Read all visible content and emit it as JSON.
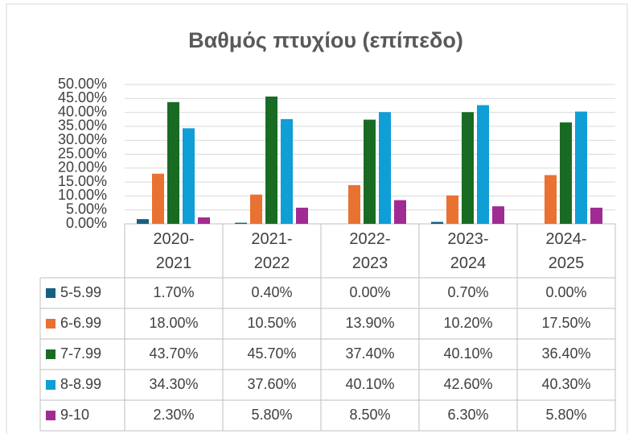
{
  "chart_data": {
    "type": "bar",
    "title": "Βαθμός πτυχίου (επίπεδο)",
    "categories": [
      "2020-2021",
      "2021-2022",
      "2022-2023",
      "2023-2024",
      "2024-2025"
    ],
    "series": [
      {
        "name": "5-5.99",
        "color": "#156082",
        "values": [
          1.7,
          0.4,
          0,
          0.7,
          0
        ],
        "value_labels": [
          "1.70%",
          "0.40%",
          "0.00%",
          "0.70%",
          "0.00%"
        ]
      },
      {
        "name": "6-6.99",
        "color": "#e97132",
        "values": [
          18,
          10.5,
          13.9,
          10.2,
          17.5
        ],
        "value_labels": [
          "18.00%",
          "10.50%",
          "13.90%",
          "10.20%",
          "17.50%"
        ]
      },
      {
        "name": "7-7.99",
        "color": "#196b24",
        "values": [
          43.7,
          45.7,
          37.4,
          40.1,
          36.4
        ],
        "value_labels": [
          "43.70%",
          "45.70%",
          "37.40%",
          "40.10%",
          "36.40%"
        ]
      },
      {
        "name": "8-8.99",
        "color": "#0f9ed5",
        "values": [
          34.3,
          37.6,
          40.1,
          42.6,
          40.3
        ],
        "value_labels": [
          "34.30%",
          "37.60%",
          "40.10%",
          "42.60%",
          "40.30%"
        ]
      },
      {
        "name": "9-10",
        "color": "#a02b93",
        "values": [
          2.3,
          5.8,
          8.5,
          6.3,
          5.8
        ],
        "value_labels": [
          "2.30%",
          "5.80%",
          "8.50%",
          "6.30%",
          "5.80%"
        ]
      }
    ],
    "ylim": [
      0,
      50
    ],
    "yticks": [
      {
        "value": 0,
        "label": "0.00%"
      },
      {
        "value": 5,
        "label": "5.00%"
      },
      {
        "value": 10,
        "label": "10.00%"
      },
      {
        "value": 15,
        "label": "15.00%"
      },
      {
        "value": 20,
        "label": "20.00%"
      },
      {
        "value": 25,
        "label": "25.00%"
      },
      {
        "value": 30,
        "label": "30.00%"
      },
      {
        "value": 35,
        "label": "35.00%"
      },
      {
        "value": 40,
        "label": "40.00%"
      },
      {
        "value": 45,
        "label": "45.00%"
      },
      {
        "value": 50,
        "label": "50.00%"
      }
    ],
    "grid": true
  }
}
